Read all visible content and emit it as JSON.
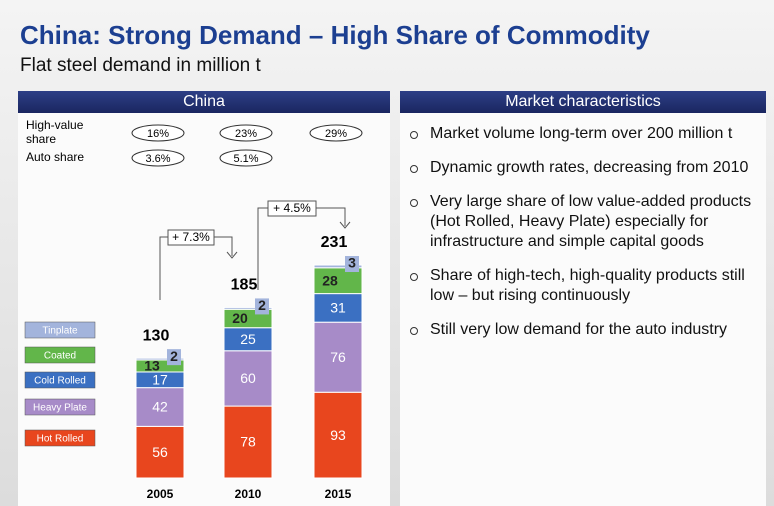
{
  "title": "China: Strong Demand – High Share of Commodity",
  "subtitle": "Flat steel demand in million t",
  "left_header": "China",
  "right_header": "Market characteristics",
  "bullets": [
    "Market volume long-term over 200 million t",
    "Dynamic growth rates, decreasing from 2010",
    "Very large share of low value-added products (Hot Rolled, Heavy Plate) especially for infrastructure and simple capital goods",
    "Share  of high-tech, high-quality products still low – but rising continuously",
    "Still very low demand for the auto industry"
  ],
  "chart_data": {
    "type": "stacked_bar",
    "categories": [
      "2005",
      "2010",
      "2015"
    ],
    "series": [
      {
        "name": "Hot Rolled",
        "color": "#e8461e",
        "values": [
          56,
          78,
          93
        ]
      },
      {
        "name": "Heavy Plate",
        "color": "#a78bc8",
        "values": [
          42,
          60,
          76
        ]
      },
      {
        "name": "Cold Rolled",
        "color": "#3b70c2",
        "values": [
          17,
          25,
          31
        ]
      },
      {
        "name": "Coated",
        "color": "#62b64a",
        "values": [
          13,
          20,
          28
        ]
      },
      {
        "name": "Tinplate",
        "color": "#a3b4dc",
        "values": [
          2,
          2,
          3
        ]
      }
    ],
    "totals": [
      130,
      185,
      231
    ],
    "high_value_share": {
      "label": "High-value share",
      "values": [
        16,
        23,
        29
      ],
      "value_labels": [
        "16%",
        "23%",
        "29%"
      ]
    },
    "auto_share": {
      "label": "Auto share",
      "values": [
        3.6,
        5.1,
        null
      ],
      "value_labels": [
        "3.6%",
        "5.1%",
        null
      ]
    },
    "annotations": [
      "+ 7.3%",
      "+ 4.5%"
    ]
  }
}
